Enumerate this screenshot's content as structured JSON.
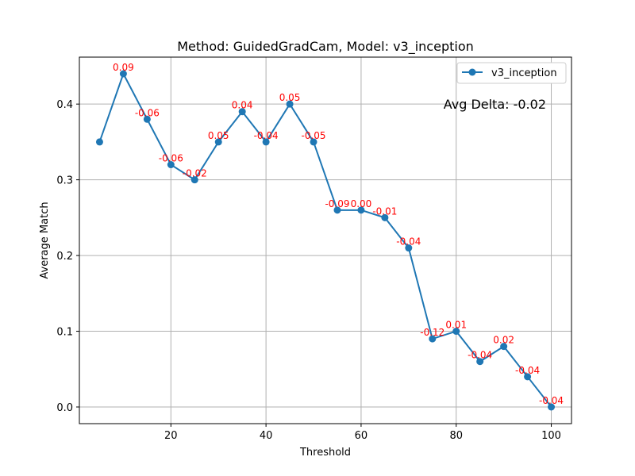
{
  "chart_data": {
    "type": "line",
    "title": "Method: GuidedGradCam, Model: v3_inception",
    "xlabel": "Threshold",
    "ylabel": "Average Match",
    "xlim": [
      0.75,
      104.25
    ],
    "ylim": [
      -0.022,
      0.462
    ],
    "x_ticks": [
      20,
      40,
      60,
      80,
      100
    ],
    "y_ticks": [
      0.0,
      0.1,
      0.2,
      0.3,
      0.4
    ],
    "x_tick_labels": [
      "20",
      "40",
      "60",
      "80",
      "100"
    ],
    "y_tick_labels": [
      "0.0",
      "0.1",
      "0.2",
      "0.3",
      "0.4"
    ],
    "grid": true,
    "legend_position": "top-right",
    "series": [
      {
        "name": "v3_inception",
        "color": "#1f77b4",
        "marker": "circle",
        "x": [
          5,
          10,
          15,
          20,
          25,
          30,
          35,
          40,
          45,
          50,
          55,
          60,
          65,
          70,
          75,
          80,
          85,
          90,
          95,
          100
        ],
        "y": [
          0.35,
          0.44,
          0.38,
          0.32,
          0.3,
          0.35,
          0.39,
          0.35,
          0.4,
          0.35,
          0.26,
          0.26,
          0.25,
          0.21,
          0.09,
          0.1,
          0.06,
          0.08,
          0.04,
          0.0
        ],
        "labels": [
          "",
          "0.09",
          "-0.06",
          "-0.06",
          "-0.02",
          "0.05",
          "0.04",
          "-0.04",
          "0.05",
          "-0.05",
          "-0.09",
          "0.00",
          "-0.01",
          "-0.04",
          "-0.12",
          "0.01",
          "-0.04",
          "0.02",
          "-0.04",
          "-0.04"
        ]
      }
    ],
    "label_color": "#ff0000",
    "annotation": "Avg Delta: -0.02"
  }
}
